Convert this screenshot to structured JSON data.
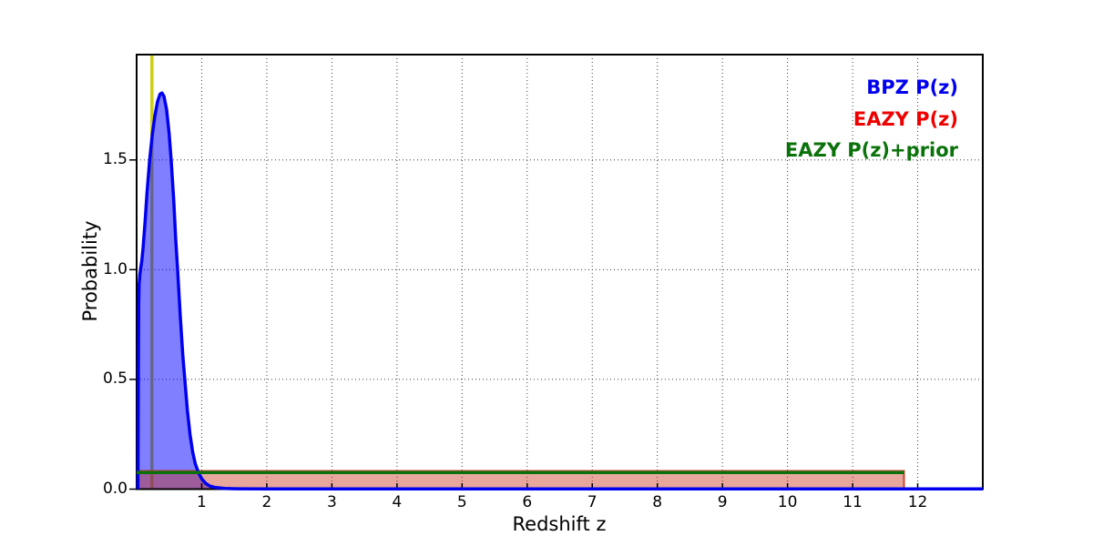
{
  "chart_data": {
    "type": "line",
    "title": "",
    "xlabel": "Redshift z",
    "ylabel": "Probability",
    "xlim": [
      0,
      13
    ],
    "ylim": [
      0,
      1.98
    ],
    "xticks": [
      1,
      2,
      3,
      4,
      5,
      6,
      7,
      8,
      9,
      10,
      11,
      12
    ],
    "yticks": [
      0,
      0.5,
      1.0,
      1.5
    ],
    "ytick_labels": [
      "0.0",
      "0.5",
      "1.0",
      "1.5"
    ],
    "grid": {
      "visible": true,
      "style": "dotted",
      "color": "#3a3a3a"
    },
    "background": "#ffffff",
    "legend_position": "upper right",
    "vline": {
      "x": 0.235,
      "color": "#cdcd16",
      "width": 3.5,
      "label": "spectroscopic-redshift-marker"
    },
    "series": [
      {
        "name": "BPZ P(z)",
        "type": "filled-line",
        "line_color": "#0000ee",
        "fill_color": "rgba(0,0,255,0.5)",
        "line_width": 3.5,
        "points": [
          [
            0.02,
            0
          ],
          [
            0.024,
            0.3
          ],
          [
            0.028,
            0.62
          ],
          [
            0.032,
            0.84
          ],
          [
            0.038,
            0.93
          ],
          [
            0.05,
            0.98
          ],
          [
            0.065,
            1.01
          ],
          [
            0.08,
            1.04
          ],
          [
            0.1,
            1.1
          ],
          [
            0.13,
            1.22
          ],
          [
            0.16,
            1.35
          ],
          [
            0.2,
            1.5
          ],
          [
            0.24,
            1.615
          ],
          [
            0.28,
            1.7
          ],
          [
            0.32,
            1.765
          ],
          [
            0.36,
            1.8
          ],
          [
            0.39,
            1.805
          ],
          [
            0.42,
            1.79
          ],
          [
            0.46,
            1.73
          ],
          [
            0.5,
            1.62
          ],
          [
            0.53,
            1.5
          ],
          [
            0.57,
            1.32
          ],
          [
            0.6,
            1.14
          ],
          [
            0.63,
            1.0
          ],
          [
            0.67,
            0.79
          ],
          [
            0.71,
            0.61
          ],
          [
            0.74,
            0.5
          ],
          [
            0.78,
            0.36
          ],
          [
            0.82,
            0.25
          ],
          [
            0.86,
            0.17
          ],
          [
            0.9,
            0.117
          ],
          [
            0.95,
            0.075
          ],
          [
            1.0,
            0.047
          ],
          [
            1.06,
            0.027
          ],
          [
            1.12,
            0.015
          ],
          [
            1.2,
            0.008
          ],
          [
            1.35,
            0.003
          ],
          [
            1.55,
            0.0015
          ],
          [
            2.0,
            0.001
          ],
          [
            13.0,
            0.001
          ]
        ]
      },
      {
        "name": "EAZY P(z)",
        "type": "filled-line",
        "line_color": "rgba(200,45,20,0.85)",
        "fill_color": "rgba(200,45,20,0.42)",
        "line_width": 2,
        "points": [
          [
            0,
            0.083
          ],
          [
            11.79,
            0.083
          ],
          [
            11.79,
            0
          ]
        ]
      },
      {
        "name": "EAZY P(z)+prior",
        "type": "line",
        "line_color": "#0a720a",
        "line_width": 3.5,
        "points": [
          [
            0,
            0.0755
          ],
          [
            11.79,
            0.0755
          ]
        ]
      }
    ]
  },
  "legend": {
    "items": [
      {
        "label": "BPZ P(z)",
        "color": "#0000ee"
      },
      {
        "label": "EAZY P(z)",
        "color": "#ee0000"
      },
      {
        "label": "EAZY P(z)+prior",
        "color": "#0a720a"
      }
    ]
  }
}
